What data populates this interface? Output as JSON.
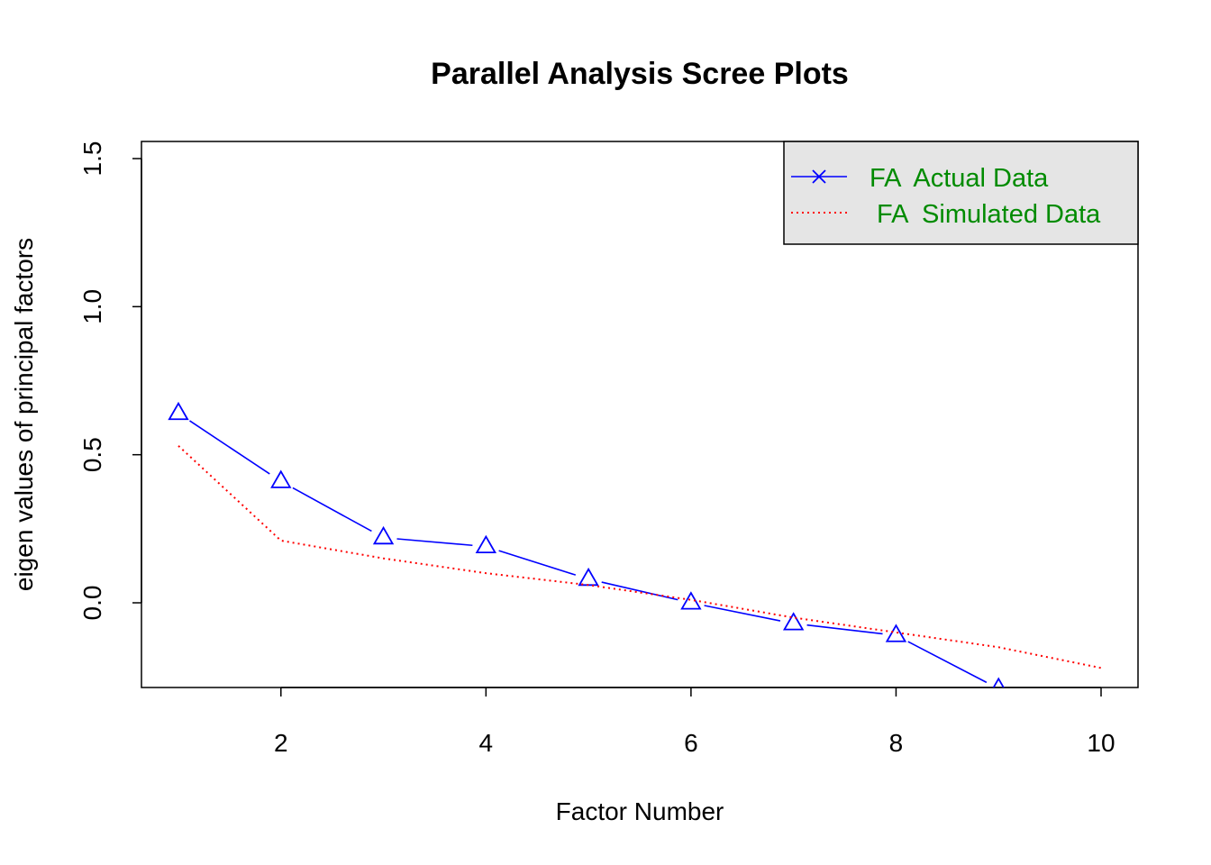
{
  "chart_data": {
    "type": "line",
    "title": "Parallel Analysis Scree Plots",
    "xlabel": "Factor Number",
    "ylabel": "eigen values of principal factors",
    "xlim": [
      0.8,
      10.5
    ],
    "ylim": [
      -0.28,
      1.55
    ],
    "x_ticks": [
      2,
      4,
      6,
      8,
      10
    ],
    "y_ticks": [
      0.0,
      0.5,
      1.0,
      1.5
    ],
    "x_tick_labels": [
      "2",
      "4",
      "6",
      "8",
      "10"
    ],
    "y_tick_labels": [
      "0.0",
      "0.5",
      "1.0",
      "1.5"
    ],
    "grid": false,
    "legend_position": "top-right",
    "legend_text_color": "#008b00",
    "legend_bg": "#e5e5e5",
    "series": [
      {
        "name": "FA  Actual Data",
        "color": "#0000ff",
        "style": "solid",
        "marker": "triangle",
        "legend_marker": "x",
        "x": [
          1,
          2,
          3,
          4,
          5,
          6,
          7,
          8,
          9
        ],
        "values": [
          0.64,
          0.41,
          0.22,
          0.19,
          0.08,
          0.0,
          -0.07,
          -0.11,
          -0.29
        ]
      },
      {
        "name": " FA  Simulated Data",
        "color": "#ff0000",
        "style": "dotted",
        "x": [
          1,
          2,
          3,
          4,
          5,
          6,
          7,
          8,
          9,
          10
        ],
        "values": [
          0.53,
          0.21,
          0.15,
          0.1,
          0.06,
          0.01,
          -0.05,
          -0.1,
          -0.15,
          -0.22
        ]
      }
    ]
  }
}
